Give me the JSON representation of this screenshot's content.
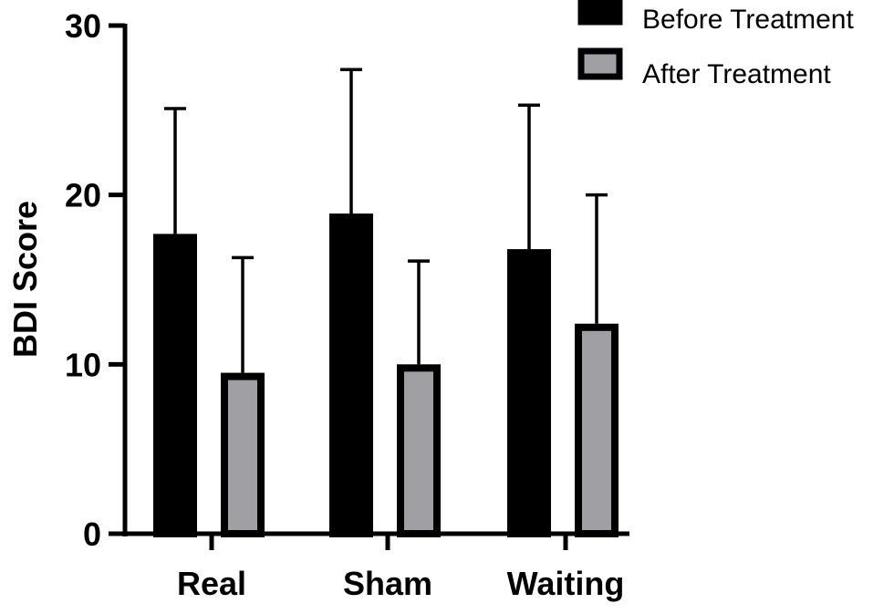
{
  "chart_data": {
    "type": "bar",
    "title": "",
    "xlabel": "",
    "ylabel": "BDI Score",
    "ylim": [
      0,
      30
    ],
    "yticks": [
      0,
      10,
      20,
      30
    ],
    "grid": false,
    "legend_position": "top-right",
    "categories": [
      "Real",
      "Sham",
      "Waiting"
    ],
    "series": [
      {
        "name": "Before Treatment",
        "color": "#000000",
        "values": [
          17.7,
          18.9,
          16.8
        ],
        "error_upper": [
          25.1,
          27.4,
          25.3
        ]
      },
      {
        "name": "After Treatment",
        "color": "#a0a0a4",
        "values": [
          9.5,
          10.0,
          12.4
        ],
        "error_upper": [
          16.3,
          16.1,
          20.0
        ]
      }
    ]
  }
}
